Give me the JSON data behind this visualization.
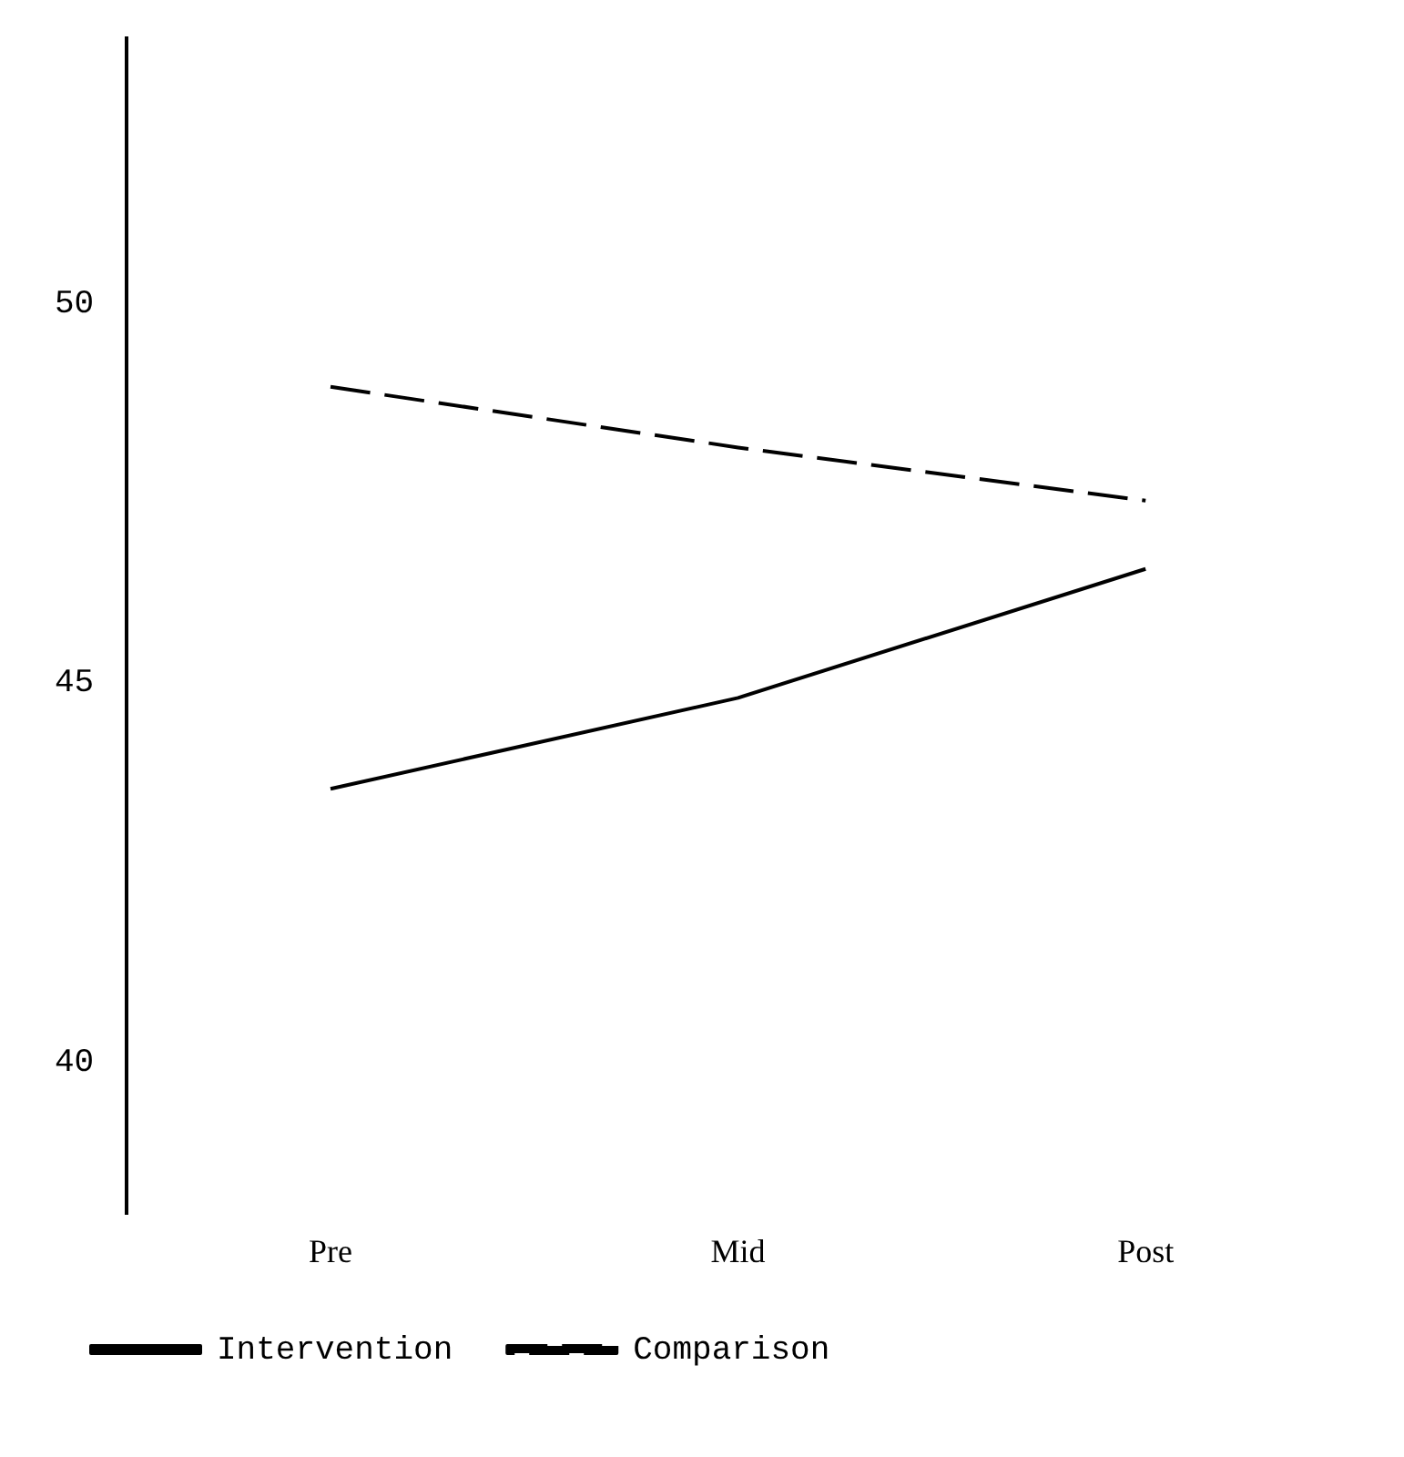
{
  "chart_data": {
    "type": "line",
    "categories": [
      "Pre",
      "Mid",
      "Post"
    ],
    "series": [
      {
        "name": "Intervention",
        "color": "#000000",
        "line_style": "solid",
        "values": [
          43.6,
          44.8,
          46.5
        ]
      },
      {
        "name": "Comparison",
        "color": "#000000",
        "line_style": "dashed",
        "values": [
          48.9,
          48.1,
          47.4
        ]
      }
    ],
    "ylim": [
      38,
      53.5
    ],
    "yticks": [
      40,
      45,
      50
    ],
    "grid": false,
    "legend": "bottom",
    "marker": "none"
  }
}
